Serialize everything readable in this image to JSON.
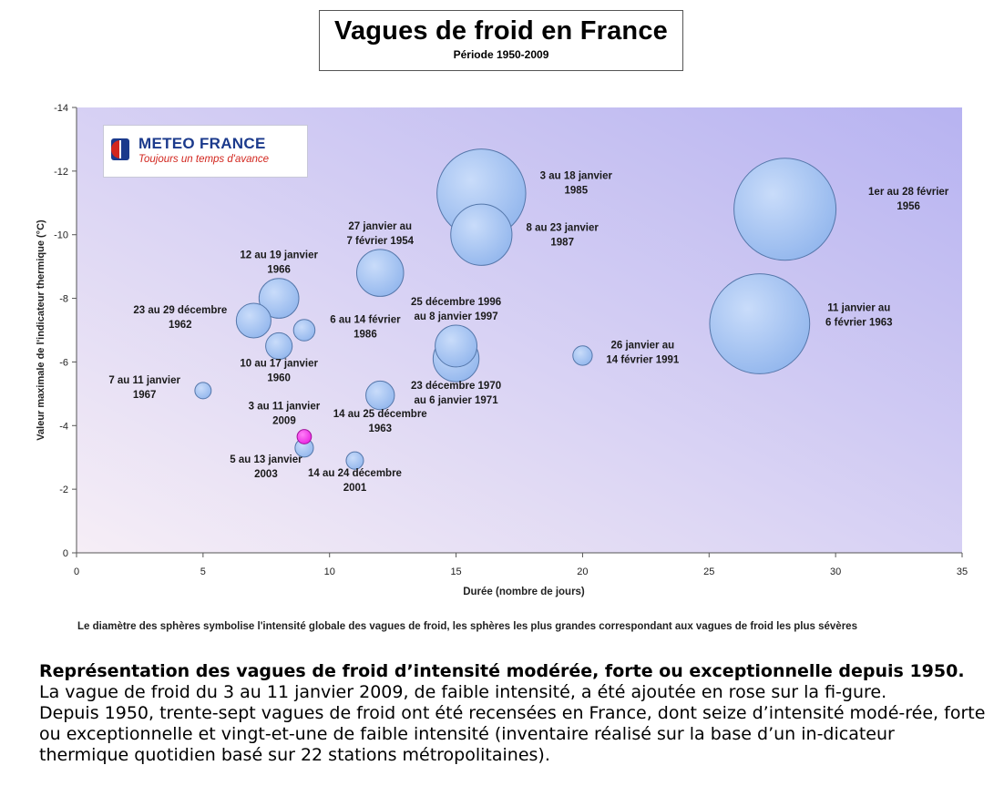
{
  "header": {
    "title": "Vagues de froid en France",
    "subtitle": "Période 1950-2009"
  },
  "logo": {
    "name": "METEO FRANCE",
    "tagline": "Toujours un temps d'avance"
  },
  "footnote": "Le diamètre des sphères symbolise l'intensité globale des vagues de froid, les sphères les plus grandes correspondant aux vagues de froid les plus sévères",
  "caption": {
    "bold_lead": "Représentation des vagues de froid d’intensité modérée, forte ou exceptionnelle depuis 1950.",
    "line1_rest": " La vague de froid du 3 au 11 janvier 2009, de faible intensité, a été ajoutée en rose sur la fi-gure.",
    "paragraph2": "Depuis 1950, trente-sept vagues de froid ont été recensées en France, dont seize d’intensité modé-rée, forte ou exceptionnelle et vingt-et-une de faible intensité (inventaire réalisé sur la base d’un in-dicateur thermique quotidien basé sur 22 stations métropolitaines)."
  },
  "chart_data": {
    "type": "scatter",
    "subtype": "bubble",
    "xlabel": "Durée (nombre de jours)",
    "ylabel": "Valeur maximale de l'indicateur thermique (°C)",
    "xlim": [
      0,
      35
    ],
    "ylim": [
      0,
      -14
    ],
    "xticks": [
      0,
      5,
      10,
      15,
      20,
      25,
      30,
      35
    ],
    "yticks": [
      0,
      -2,
      -4,
      -6,
      -8,
      -10,
      -12,
      -14
    ],
    "ytick_labels": [
      "0",
      "-2",
      "-4",
      "-6",
      "-8",
      "-10",
      "-12",
      "-14"
    ],
    "grid": false,
    "colors": {
      "bubble": "#8fb4ec",
      "bubble_edge": "#5577aa",
      "highlight": "#e81ee0",
      "plot_bg_start": "#f6eef6",
      "plot_bg_end": "#b7b3f1"
    },
    "points": [
      {
        "label": "1er au 28 février\n1956",
        "x": 28,
        "y": -10.8,
        "size": 1.0,
        "label_pos": "right"
      },
      {
        "label": "3 au 18 janvier\n1985",
        "x": 16,
        "y": -11.3,
        "size": 0.87,
        "label_pos": "right"
      },
      {
        "label": "11 janvier au\n6 février 1963",
        "x": 27,
        "y": -7.2,
        "size": 0.98,
        "label_pos": "right"
      },
      {
        "label": "8 au 23 janvier\n1987",
        "x": 16,
        "y": -10.0,
        "size": 0.6,
        "label_pos": "right"
      },
      {
        "label": "27 janvier au\n7 février 1954",
        "x": 12,
        "y": -8.8,
        "size": 0.46,
        "label_pos": "above"
      },
      {
        "label": "12 au 19 janvier\n1966",
        "x": 8,
        "y": -8.0,
        "size": 0.39,
        "label_pos": "above"
      },
      {
        "label": "23 au 29 décembre\n1962",
        "x": 7,
        "y": -7.3,
        "size": 0.34,
        "label_pos": "left"
      },
      {
        "label": "6 au 14 février\n1986",
        "x": 9,
        "y": -7.0,
        "size": 0.21,
        "label_pos": "right"
      },
      {
        "label": "10 au 17 janvier\n1960",
        "x": 8,
        "y": -6.5,
        "size": 0.26,
        "label_pos": "below"
      },
      {
        "label": "23 décembre 1970\nau 6 janvier 1971",
        "x": 15,
        "y": -6.1,
        "size": 0.45,
        "label_pos": "below"
      },
      {
        "label": "25 décembre 1996\nau 8 janvier 1997",
        "x": 15,
        "y": -6.5,
        "size": 0.41,
        "label_pos": "above"
      },
      {
        "label": "26 janvier au\n14 février 1991",
        "x": 20,
        "y": -6.2,
        "size": 0.19,
        "label_pos": "right"
      },
      {
        "label": "7 au 11 janvier\n1967",
        "x": 5,
        "y": -5.1,
        "size": 0.16,
        "label_pos": "left"
      },
      {
        "label": "14 au 25 décembre\n1963",
        "x": 12,
        "y": -4.95,
        "size": 0.28,
        "label_pos": "below"
      },
      {
        "label": "5 au 13 janvier\n2003",
        "x": 9,
        "y": -3.3,
        "size": 0.18,
        "label_pos": "below-left"
      },
      {
        "label": "14 au 24 décembre\n2001",
        "x": 11,
        "y": -2.9,
        "size": 0.17,
        "label_pos": "below"
      },
      {
        "label": "3 au 11 janvier\n2009",
        "x": 9,
        "y": -3.65,
        "size": 0.14,
        "label_pos": "above-left",
        "highlight": true
      }
    ]
  }
}
